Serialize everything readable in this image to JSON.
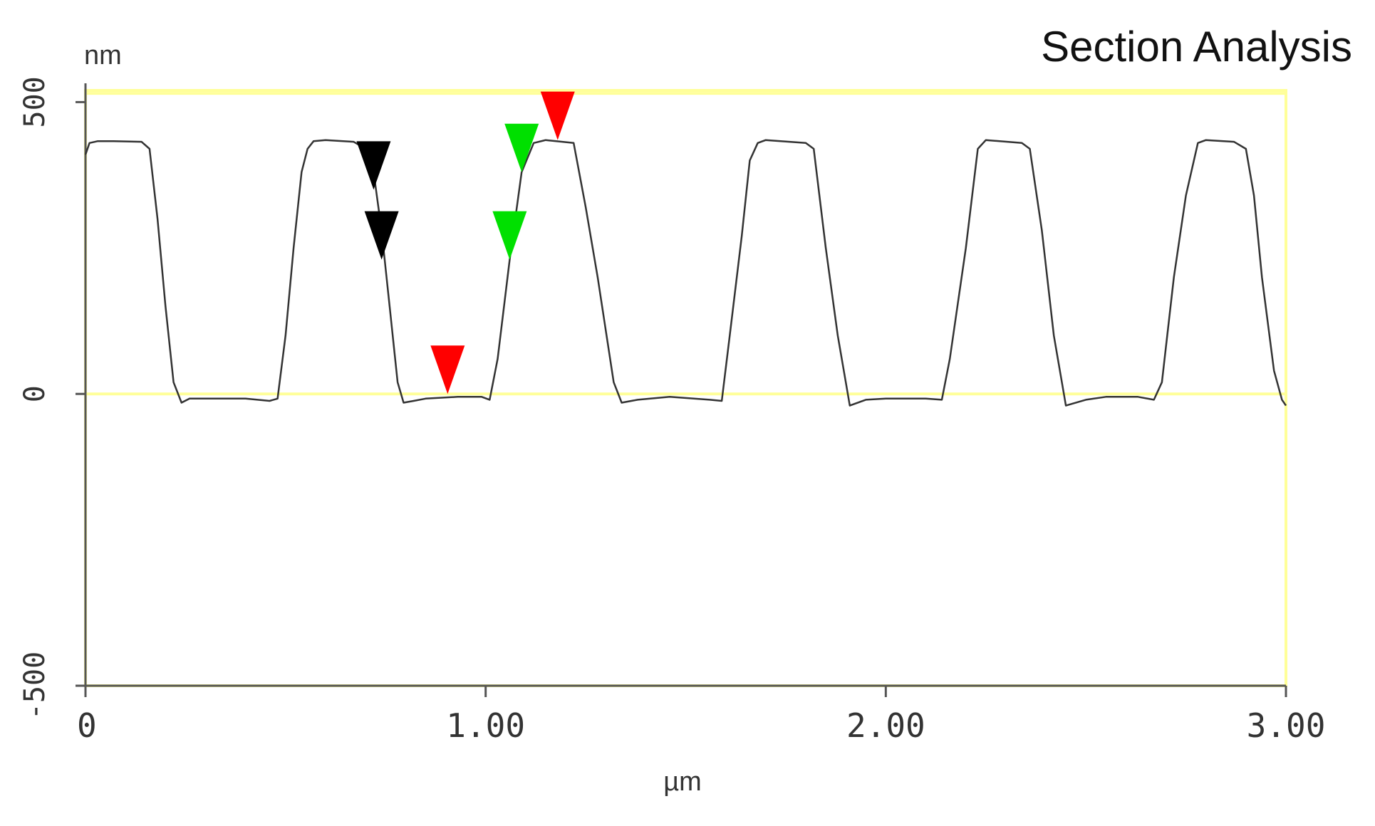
{
  "chart_data": {
    "type": "line",
    "title": "Section Analysis",
    "xlabel": "µm",
    "ylabel": "nm",
    "xlim": [
      0,
      3.0
    ],
    "ylim": [
      -500,
      520
    ],
    "x_ticks": [
      {
        "value": 0,
        "label": "0"
      },
      {
        "value": 1.0,
        "label": "1.00"
      },
      {
        "value": 2.0,
        "label": "2.00"
      },
      {
        "value": 3.0,
        "label": "3.00"
      }
    ],
    "y_ticks": [
      {
        "value": 500,
        "label": "500"
      },
      {
        "value": 0,
        "label": "0"
      },
      {
        "value": -500,
        "label": "-500"
      }
    ],
    "reference_lines": [
      0,
      515
    ],
    "colors": {
      "profile": "#333333",
      "frame": "#ffff99",
      "axis": "#555555",
      "marker_black": "#000000",
      "marker_green": "#00e000",
      "marker_red": "#ff0000"
    },
    "series": [
      {
        "values": [
          [
            0.0,
            410
          ],
          [
            0.01,
            430
          ],
          [
            0.03,
            433
          ],
          [
            0.07,
            433
          ],
          [
            0.14,
            432
          ],
          [
            0.16,
            420
          ],
          [
            0.18,
            300
          ],
          [
            0.2,
            150
          ],
          [
            0.22,
            20
          ],
          [
            0.24,
            -15
          ],
          [
            0.26,
            -8
          ],
          [
            0.32,
            -8
          ],
          [
            0.4,
            -8
          ],
          [
            0.46,
            -12
          ],
          [
            0.48,
            -8
          ],
          [
            0.5,
            100
          ],
          [
            0.52,
            250
          ],
          [
            0.54,
            380
          ],
          [
            0.555,
            420
          ],
          [
            0.57,
            433
          ],
          [
            0.6,
            435
          ],
          [
            0.67,
            432
          ],
          [
            0.7,
            420
          ],
          [
            0.72,
            380
          ],
          [
            0.74,
            280
          ],
          [
            0.76,
            150
          ],
          [
            0.78,
            20
          ],
          [
            0.795,
            -15
          ],
          [
            0.82,
            -12
          ],
          [
            0.85,
            -8
          ],
          [
            0.93,
            -5
          ],
          [
            0.99,
            -5
          ],
          [
            1.01,
            -10
          ],
          [
            1.03,
            60
          ],
          [
            1.06,
            230
          ],
          [
            1.09,
            380
          ],
          [
            1.12,
            430
          ],
          [
            1.15,
            435
          ],
          [
            1.22,
            430
          ],
          [
            1.25,
            320
          ],
          [
            1.28,
            200
          ],
          [
            1.32,
            20
          ],
          [
            1.34,
            -15
          ],
          [
            1.38,
            -10
          ],
          [
            1.46,
            -5
          ],
          [
            1.56,
            -10
          ],
          [
            1.59,
            -12
          ],
          [
            1.61,
            100
          ],
          [
            1.64,
            270
          ],
          [
            1.66,
            400
          ],
          [
            1.68,
            430
          ],
          [
            1.7,
            435
          ],
          [
            1.8,
            430
          ],
          [
            1.82,
            420
          ],
          [
            1.85,
            250
          ],
          [
            1.88,
            100
          ],
          [
            1.9,
            20
          ],
          [
            1.91,
            -20
          ],
          [
            1.95,
            -10
          ],
          [
            2.0,
            -8
          ],
          [
            2.1,
            -8
          ],
          [
            2.14,
            -10
          ],
          [
            2.16,
            60
          ],
          [
            2.2,
            250
          ],
          [
            2.23,
            420
          ],
          [
            2.25,
            435
          ],
          [
            2.34,
            430
          ],
          [
            2.36,
            420
          ],
          [
            2.39,
            280
          ],
          [
            2.42,
            100
          ],
          [
            2.44,
            20
          ],
          [
            2.45,
            -20
          ],
          [
            2.5,
            -10
          ],
          [
            2.55,
            -5
          ],
          [
            2.63,
            -5
          ],
          [
            2.67,
            -10
          ],
          [
            2.69,
            20
          ],
          [
            2.72,
            200
          ],
          [
            2.75,
            340
          ],
          [
            2.78,
            430
          ],
          [
            2.8,
            435
          ],
          [
            2.87,
            432
          ],
          [
            2.9,
            420
          ],
          [
            2.92,
            340
          ],
          [
            2.94,
            200
          ],
          [
            2.97,
            40
          ],
          [
            2.99,
            -10
          ],
          [
            3.0,
            -20
          ]
        ]
      }
    ],
    "cursors": [
      {
        "color": "black",
        "x": 0.72,
        "y": 350
      },
      {
        "color": "black",
        "x": 0.74,
        "y": 230
      },
      {
        "color": "green",
        "x": 1.09,
        "y": 380
      },
      {
        "color": "green",
        "x": 1.06,
        "y": 230
      },
      {
        "color": "red",
        "x": 0.905,
        "y": 0
      },
      {
        "color": "red",
        "x": 1.18,
        "y": 435
      }
    ],
    "grid": false,
    "legend": "none"
  }
}
